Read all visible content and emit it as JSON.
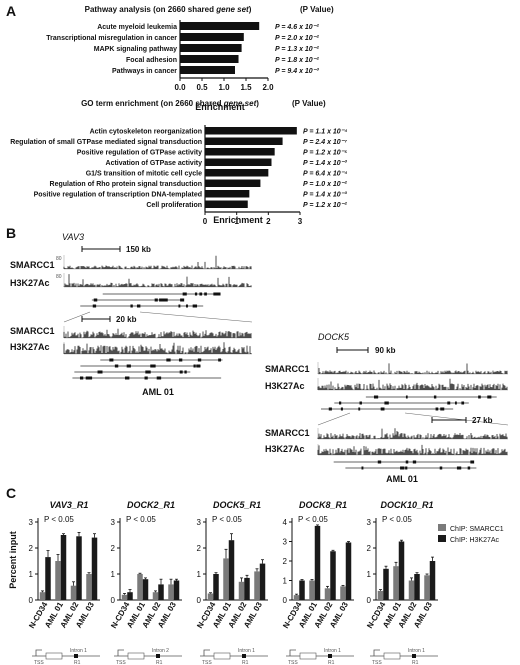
{
  "panels": {
    "A": "A",
    "B": "B",
    "C": "C"
  },
  "panelA": {
    "pathway": {
      "title_pre": "Pathway analysis (on 2660 shared ",
      "title_em": "gene set",
      "title_post": ")",
      "pcol_header": "(P Value)",
      "xlabel": "Enrichment",
      "ticks": [
        "0.0",
        "0.5",
        "1.0",
        "1.5",
        "2.0"
      ],
      "xmax": 2.0,
      "rows": [
        {
          "label": "Acute myeloid leukemia",
          "value": 1.8,
          "p": "P = 4.6 x 10⁻²"
        },
        {
          "label": "Transcriptional misregulation in cancer",
          "value": 1.45,
          "p": "P = 2.0 x 10⁻²"
        },
        {
          "label": "MAPK signaling pathway",
          "value": 1.4,
          "p": "P = 1.3 x 10⁻²"
        },
        {
          "label": "Focal adhesion",
          "value": 1.33,
          "p": "P = 1.8 x 10⁻²"
        },
        {
          "label": "Pathways in cancer",
          "value": 1.25,
          "p": "P = 9.4 x 10⁻³"
        }
      ]
    },
    "go": {
      "title_pre": "GO term enrichment (on 2660 shared ",
      "title_em": "gene set",
      "title_post": ")",
      "pcol_header": "(P Value)",
      "xlabel": "Enrichment",
      "ticks": [
        "0",
        "1",
        "2",
        "3"
      ],
      "xmax": 3.0,
      "rows": [
        {
          "label": "Actin cytoskeleton reorganization",
          "value": 2.9,
          "p": "P = 1.1 x 10⁻⁴"
        },
        {
          "label": "Regulation of small GTPase mediated signal transduction",
          "value": 2.45,
          "p": "P = 2.4 x 10⁻⁷"
        },
        {
          "label": "Positive regulation of GTPase activity",
          "value": 2.2,
          "p": "P = 1.2 x 10⁻⁵"
        },
        {
          "label": "Activation of GTPase activity",
          "value": 2.1,
          "p": "P = 1.4 x 10⁻³"
        },
        {
          "label": "G1/S transition of mitotic cell cycle",
          "value": 2.0,
          "p": "P = 6.4 x 10⁻⁴"
        },
        {
          "label": "Regulation of Rho protein signal transduction",
          "value": 1.75,
          "p": "P = 1.0 x 10⁻²"
        },
        {
          "label": "Positive regulation of transcription DNA-templated",
          "value": 1.4,
          "p": "P = 1.4 x 10⁻³"
        },
        {
          "label": "Cell proliferation",
          "value": 1.35,
          "p": "P = 1.2 x 10⁻²"
        }
      ]
    }
  },
  "panelB": {
    "vav3": {
      "gene": "VAV3",
      "scale1": "150 kb",
      "scale2": "20 kb",
      "track1": "SMARCC1",
      "track2": "H3K27Ac",
      "ymax": "80",
      "sample": "AML 01"
    },
    "dock5": {
      "gene": "DOCK5",
      "scale1": "90 kb",
      "scale2": "27 kb",
      "track1": "SMARCC1",
      "track2": "H3K27Ac",
      "ymax": "80",
      "sample": "AML 01"
    }
  },
  "panelC": {
    "ylabel": "Percent input",
    "yticks": [
      "0",
      "1",
      "2",
      "3"
    ],
    "ymax": 3,
    "pvalue": "P < 0.05",
    "legend": [
      {
        "name": "ChIP: SMARCC1",
        "color": "#7a7a7a"
      },
      {
        "name": "ChIP: H3K27Ac",
        "color": "#1a1a1a"
      }
    ],
    "categories": [
      "N-CD34",
      "AML 01",
      "AML 02",
      "AML 03"
    ],
    "diagram": {
      "tss": "TSS",
      "intron1": "Intron 1",
      "intron2": "Intron 2"
    },
    "charts": [
      {
        "title": "VAV3_R1",
        "smarcc1": [
          0.3,
          1.5,
          0.55,
          1.0
        ],
        "smarcc1_err": [
          0.05,
          0.25,
          0.15,
          0.05
        ],
        "h3k27ac": [
          1.65,
          2.5,
          2.45,
          2.4
        ],
        "h3k27ac_err": [
          0.25,
          0.05,
          0.15,
          0.15
        ],
        "region": "R1"
      },
      {
        "title": "DOCK2_R1",
        "smarcc1": [
          0.2,
          1.0,
          0.3,
          0.6
        ],
        "smarcc1_err": [
          0.05,
          0.03,
          0.05,
          0.2
        ],
        "h3k27ac": [
          0.3,
          0.8,
          0.6,
          0.75
        ],
        "h3k27ac_err": [
          0.1,
          0.05,
          0.2,
          0.05
        ],
        "region": "R1"
      },
      {
        "title": "DOCK5_R1",
        "smarcc1": [
          0.25,
          1.6,
          0.7,
          1.1
        ],
        "smarcc1_err": [
          0.03,
          0.35,
          0.15,
          0.1
        ],
        "h3k27ac": [
          1.0,
          2.3,
          0.85,
          1.4
        ],
        "h3k27ac_err": [
          0.05,
          0.25,
          0.1,
          0.15
        ],
        "region": "R1"
      },
      {
        "title": "DOCK8_R1",
        "smarcc1": [
          0.25,
          1.0,
          0.6,
          0.7
        ],
        "smarcc1_err": [
          0.05,
          0.05,
          0.1,
          0.05
        ],
        "h3k27ac": [
          1.0,
          3.8,
          2.5,
          2.95
        ],
        "h3k27ac_err": [
          0.05,
          0.05,
          0.05,
          0.05
        ],
        "region": "R1"
      },
      {
        "title": "DOCK10_R1",
        "smarcc1": [
          0.35,
          1.3,
          0.75,
          0.95
        ],
        "smarcc1_err": [
          0.05,
          0.15,
          0.1,
          0.05
        ],
        "h3k27ac": [
          1.2,
          2.25,
          1.0,
          1.5
        ],
        "h3k27ac_err": [
          0.1,
          0.05,
          0.05,
          0.15
        ],
        "region": "R1"
      }
    ]
  }
}
